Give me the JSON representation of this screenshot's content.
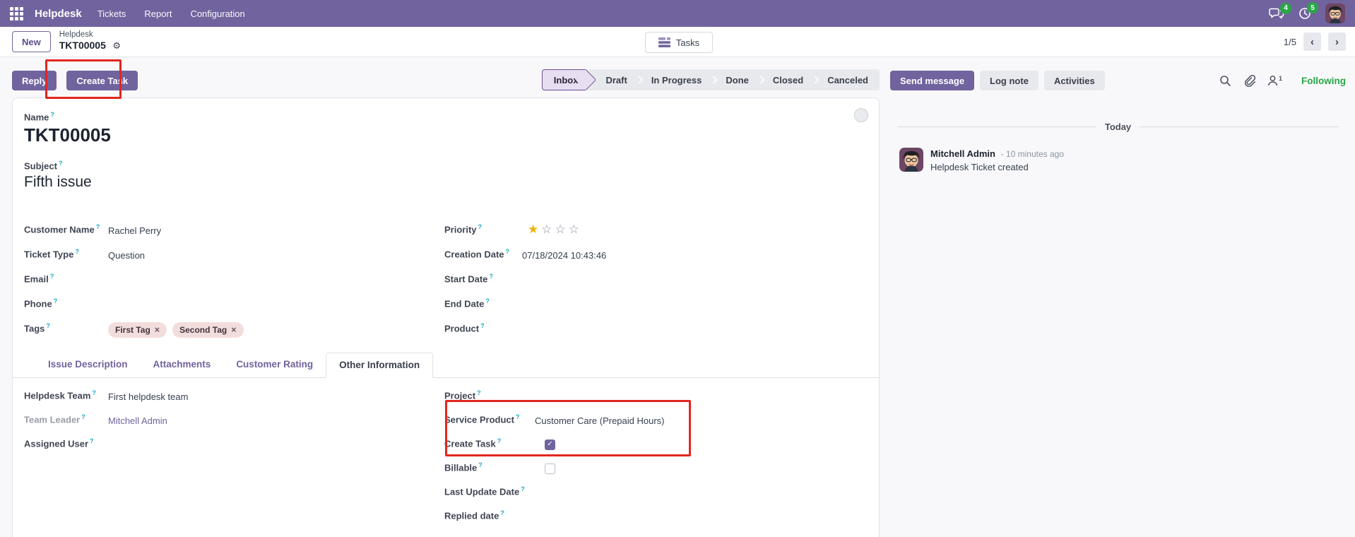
{
  "colors": {
    "accent": "#71639e",
    "annotation_red": "#e3261d",
    "following_green": "#28a745",
    "badge_green": "#28a745",
    "star_gold": "#efb306"
  },
  "icons": {
    "help_marker": "?",
    "gear": "⚙",
    "close": "×",
    "check": "✓",
    "chevron_left": "‹",
    "chevron_right": "›",
    "star_filled": "★",
    "star_empty": "☆"
  },
  "topbar": {
    "app": "Helpdesk",
    "menus": [
      "Tickets",
      "Report",
      "Configuration"
    ],
    "messages_badge": "4",
    "activities_badge": "5"
  },
  "control": {
    "new_button": "New",
    "breadcrumb_parent": "Helpdesk",
    "breadcrumb_current": "TKT00005",
    "stat_button": "Tasks",
    "pager": "1/5"
  },
  "header": {
    "reply": "Reply",
    "create_task": "Create Task",
    "statuses": [
      "Inbox",
      "Draft",
      "In Progress",
      "Done",
      "Closed",
      "Canceled"
    ],
    "active_status": "Inbox"
  },
  "chatter": {
    "send_message": "Send message",
    "log_note": "Log note",
    "activities": "Activities",
    "followers_count": "1",
    "following": "Following",
    "day": "Today",
    "message": {
      "author": "Mitchell Admin",
      "time_ago": "- 10 minutes ago",
      "body": "Helpdesk Ticket created"
    }
  },
  "form": {
    "name_label": "Name",
    "name_value": "TKT00005",
    "subject_label": "Subject",
    "subject_value": "Fifth issue",
    "fields_left": [
      {
        "label": "Customer Name",
        "value": "Rachel Perry"
      },
      {
        "label": "Ticket Type",
        "value": "Question"
      },
      {
        "label": "Email",
        "value": ""
      },
      {
        "label": "Phone",
        "value": ""
      }
    ],
    "tags_label": "Tags",
    "tags": [
      "First Tag",
      "Second Tag"
    ],
    "priority": {
      "label": "Priority",
      "filled": 1,
      "total": 4
    },
    "fields_right": [
      {
        "label": "Creation Date",
        "value": "07/18/2024 10:43:46"
      },
      {
        "label": "Start Date",
        "value": ""
      },
      {
        "label": "End Date",
        "value": ""
      },
      {
        "label": "Product",
        "value": ""
      }
    ],
    "tabs": [
      "Issue Description",
      "Attachments",
      "Customer Rating",
      "Other Information"
    ],
    "active_tab": "Other Information",
    "other_info_left": [
      {
        "label": "Helpdesk Team",
        "value": "First helpdesk team"
      },
      {
        "label": "Team Leader",
        "value": "Mitchell Admin"
      },
      {
        "label": "Assigned User",
        "value": ""
      }
    ],
    "other_info_right": [
      {
        "label": "Project",
        "value": ""
      },
      {
        "label": "Service Product",
        "value": "Customer Care (Prepaid Hours)"
      },
      {
        "label": "Create Task",
        "checked": true
      },
      {
        "label": "Billable",
        "checked": false
      },
      {
        "label": "Last Update Date",
        "value": ""
      },
      {
        "label": "Replied date",
        "value": ""
      }
    ]
  }
}
